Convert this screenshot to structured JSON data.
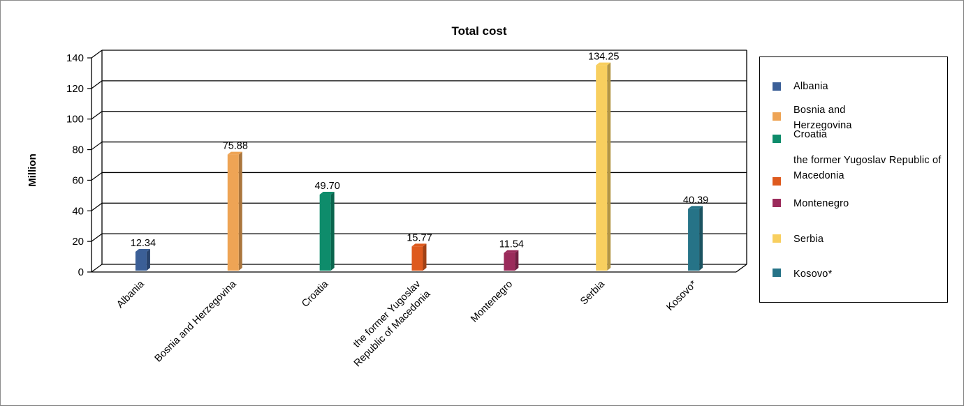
{
  "chart_data": {
    "type": "bar",
    "title": "Total cost",
    "ylabel": "Million",
    "xlabel": "",
    "ylim": [
      0,
      140
    ],
    "yticks": [
      0,
      20,
      40,
      60,
      80,
      100,
      120,
      140
    ],
    "grid": true,
    "legend_position": "right",
    "categories": [
      "Albania",
      "Bosnia and Herzegovina",
      "Croatia",
      "the former Yugoslav Republic of Macedonia",
      "Montenegro",
      "Serbia",
      "Kosovo*"
    ],
    "category_tick_labels": [
      [
        "Albania"
      ],
      [
        "Bosnia and Herzegovina"
      ],
      [
        "Croatia"
      ],
      [
        "the former Yugoslav",
        "Republic of Macedonia"
      ],
      [
        "Montenegro"
      ],
      [
        "Serbia"
      ],
      [
        "Kosovo*"
      ]
    ],
    "values": [
      12.34,
      75.88,
      49.7,
      15.77,
      11.54,
      134.25,
      40.39
    ],
    "value_labels": [
      "12.34",
      "75.88",
      "49.70",
      "15.77",
      "11.54",
      "134.25",
      "40.39"
    ],
    "colors": [
      "#3b5f97",
      "#eea455",
      "#0e8c6b",
      "#de5a1e",
      "#9b2b5b",
      "#f8cf5f",
      "#267387"
    ],
    "legend": [
      {
        "label": "Albania",
        "color": "#3b5f97"
      },
      {
        "label": "Bosnia and Herzegovina",
        "color": "#eea455"
      },
      {
        "label": "Croatia",
        "color": "#0e8c6b"
      },
      {
        "label": "the former Yugoslav Republic of Macedonia",
        "color": "#de5a1e"
      },
      {
        "label": "Montenegro",
        "color": "#9b2b5b"
      },
      {
        "label": "Serbia",
        "color": "#f8cf5f"
      },
      {
        "label": "Kosovo*",
        "color": "#267387"
      }
    ]
  }
}
